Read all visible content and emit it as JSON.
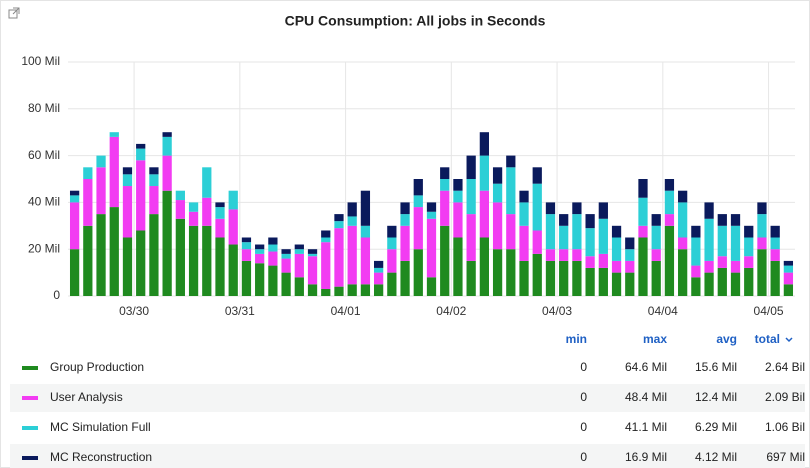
{
  "chart_data": {
    "type": "stacked_bar",
    "title": "CPU Consumption: All jobs in Seconds",
    "categories": [
      null,
      null,
      null,
      null,
      null,
      null,
      null,
      null,
      null,
      null,
      null,
      null,
      null,
      null,
      null,
      null,
      null,
      null,
      null,
      null,
      null,
      null,
      null,
      null,
      null,
      null,
      null,
      null,
      null,
      null,
      null,
      null,
      null,
      null,
      null,
      null,
      null,
      null,
      null,
      null,
      null,
      null,
      null,
      null,
      null,
      null,
      null,
      null,
      null,
      null,
      null,
      null,
      null,
      null,
      null
    ],
    "xticks": [
      {
        "value": 5,
        "label": "03/30"
      },
      {
        "value": 13,
        "label": "03/31"
      },
      {
        "value": 21,
        "label": "04/01"
      },
      {
        "value": 29,
        "label": "04/02"
      },
      {
        "value": 37,
        "label": "04/03"
      },
      {
        "value": 45,
        "label": "04/04"
      },
      {
        "value": 53,
        "label": "04/05"
      }
    ],
    "ylim": [
      0,
      100
    ],
    "yticks": [
      0,
      {
        "value": 20,
        "label": "20 Mil"
      },
      {
        "value": 40,
        "label": "40 Mil"
      },
      {
        "value": 60,
        "label": "60 Mil"
      },
      {
        "value": 80,
        "label": "80 Mil"
      },
      {
        "value": 100,
        "label": "100 Mil"
      }
    ],
    "grid": true,
    "stats_header": [
      "min",
      "max",
      "avg",
      "total"
    ],
    "series": [
      {
        "name": "Group Production",
        "color": "#1f8a1f",
        "stats": [
          "0",
          "64.6 Mil",
          "15.6 Mil",
          "2.64 Bil"
        ],
        "values": [
          20,
          30,
          35,
          38,
          25,
          28,
          35,
          45,
          33,
          30,
          30,
          25,
          22,
          15,
          14,
          13,
          10,
          8,
          5,
          3,
          4,
          5,
          5,
          5,
          10,
          15,
          20,
          8,
          30,
          25,
          15,
          25,
          20,
          20,
          15,
          18,
          15,
          15,
          15,
          12,
          12,
          10,
          10,
          25,
          15,
          30,
          20,
          8,
          10,
          12,
          10,
          12,
          20,
          15,
          5
        ]
      },
      {
        "name": "User Analysis",
        "color": "#f23cf2",
        "stats": [
          "0",
          "48.4 Mil",
          "12.4 Mil",
          "2.09 Bil"
        ],
        "values": [
          20,
          20,
          20,
          30,
          22,
          30,
          12,
          15,
          8,
          6,
          12,
          8,
          15,
          5,
          4,
          6,
          6,
          10,
          12,
          20,
          25,
          25,
          20,
          5,
          10,
          15,
          18,
          25,
          15,
          15,
          20,
          20,
          20,
          15,
          15,
          10,
          5,
          5,
          5,
          5,
          6,
          5,
          5,
          5,
          5,
          5,
          5,
          5,
          5,
          5,
          5,
          5,
          5,
          5,
          5
        ]
      },
      {
        "name": "MC Simulation Full",
        "color": "#2ccfd6",
        "stats": [
          "0",
          "41.1 Mil",
          "6.29 Mil",
          "1.06 Bil"
        ],
        "values": [
          3,
          5,
          5,
          2,
          5,
          5,
          5,
          8,
          4,
          4,
          13,
          5,
          8,
          3,
          2,
          3,
          2,
          2,
          1,
          2,
          3,
          4,
          5,
          2,
          5,
          5,
          5,
          3,
          5,
          5,
          15,
          15,
          8,
          20,
          10,
          20,
          15,
          10,
          15,
          12,
          15,
          10,
          5,
          12,
          10,
          10,
          15,
          12,
          18,
          13,
          15,
          8,
          10,
          5,
          3
        ]
      },
      {
        "name": "MC Reconstruction",
        "color": "#0a1a5c",
        "stats": [
          "0",
          "16.9 Mil",
          "4.12 Mil",
          "697 Mil"
        ],
        "values": [
          2,
          0,
          0,
          0,
          3,
          2,
          3,
          2,
          0,
          0,
          0,
          2,
          0,
          2,
          2,
          3,
          2,
          2,
          2,
          3,
          3,
          6,
          15,
          3,
          5,
          5,
          7,
          4,
          5,
          5,
          10,
          10,
          7,
          5,
          5,
          7,
          5,
          5,
          5,
          6,
          7,
          5,
          5,
          8,
          5,
          5,
          5,
          5,
          7,
          5,
          5,
          5,
          5,
          5,
          2
        ]
      }
    ]
  }
}
